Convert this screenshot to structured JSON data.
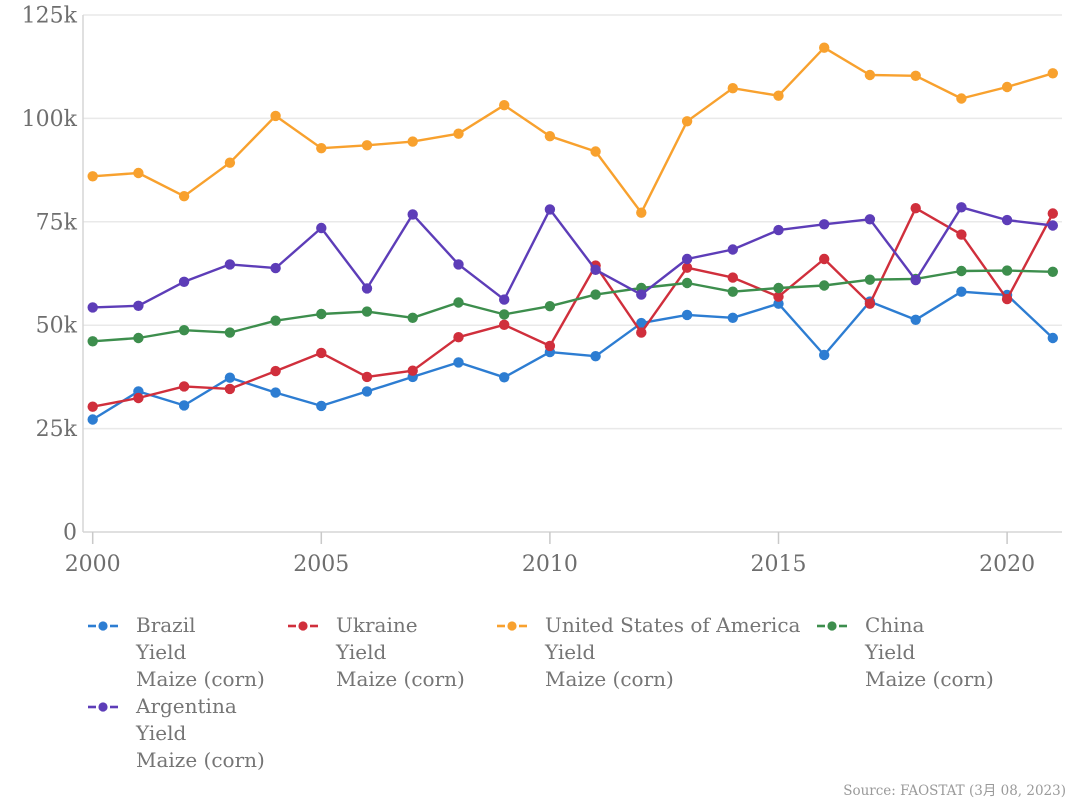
{
  "chart_data": {
    "type": "line",
    "title": "",
    "x": [
      2000,
      2001,
      2002,
      2003,
      2004,
      2005,
      2006,
      2007,
      2008,
      2009,
      2010,
      2011,
      2012,
      2013,
      2014,
      2015,
      2016,
      2017,
      2018,
      2019,
      2020,
      2021
    ],
    "x_tick_labels": [
      "2000",
      "2005",
      "2010",
      "2015",
      "2020"
    ],
    "x_tick_values": [
      2000,
      2005,
      2010,
      2015,
      2020
    ],
    "y_tick_labels": [
      "0",
      "25k",
      "50k",
      "75k",
      "100k",
      "125k"
    ],
    "y_tick_values": [
      0,
      25,
      50,
      75,
      100,
      125
    ],
    "ylim": [
      0,
      125
    ],
    "grid": true,
    "legend_position": "bottom",
    "series": [
      {
        "name": "Brazil",
        "color": "#2d7dd2",
        "values": [
          27.2,
          34.0,
          30.6,
          37.3,
          33.7,
          30.5,
          34.0,
          37.5,
          41.0,
          37.4,
          43.5,
          42.5,
          50.5,
          52.5,
          51.8,
          55.2,
          42.8,
          55.7,
          51.3,
          58.1,
          57.3,
          46.9
        ]
      },
      {
        "name": "Ukraine",
        "color": "#d02f3c",
        "values": [
          30.3,
          32.4,
          35.2,
          34.6,
          38.9,
          43.3,
          37.5,
          39.0,
          47.1,
          50.1,
          45.0,
          64.4,
          48.2,
          63.9,
          61.5,
          56.9,
          66.0,
          55.2,
          78.3,
          71.9,
          56.3,
          77.0
        ]
      },
      {
        "name": "United States of America",
        "color": "#f8a12e",
        "values": [
          86.0,
          86.8,
          81.2,
          89.3,
          100.6,
          92.8,
          93.5,
          94.4,
          96.3,
          103.2,
          95.7,
          92.0,
          77.2,
          99.3,
          107.3,
          105.5,
          117.1,
          110.5,
          110.3,
          104.8,
          107.6,
          110.9
        ]
      },
      {
        "name": "China",
        "color": "#3d8e4d",
        "values": [
          46.1,
          46.9,
          48.8,
          48.2,
          51.1,
          52.7,
          53.3,
          51.8,
          55.5,
          52.6,
          54.6,
          57.4,
          59.0,
          60.2,
          58.1,
          59.0,
          59.6,
          61.0,
          61.2,
          63.1,
          63.2,
          62.9
        ]
      },
      {
        "name": "Argentina",
        "color": "#5d3db8",
        "values": [
          54.3,
          54.7,
          60.5,
          64.7,
          63.8,
          73.5,
          58.9,
          76.8,
          64.7,
          56.2,
          78.0,
          63.4,
          57.4,
          66.0,
          68.3,
          73.0,
          74.4,
          75.6,
          60.9,
          78.5,
          75.4,
          74.1
        ]
      }
    ]
  },
  "legend": {
    "items": [
      {
        "country": "Brazil",
        "metric": "Yield",
        "product": "Maize (corn)"
      },
      {
        "country": "Ukraine",
        "metric": "Yield",
        "product": "Maize (corn)"
      },
      {
        "country": "United States of America",
        "metric": "Yield",
        "product": "Maize (corn)"
      },
      {
        "country": "China",
        "metric": "Yield",
        "product": "Maize (corn)"
      },
      {
        "country": "Argentina",
        "metric": "Yield",
        "product": "Maize (corn)"
      }
    ]
  },
  "source": {
    "text": "Source: FAOSTAT (3月 08, 2023)"
  },
  "colors": {
    "axis_text": "#6e6e6e",
    "legend_text": "#757575",
    "gridline": "#e9e9e9",
    "axis_line": "#d6d6d6",
    "tick_mark": "#c9c9c9",
    "source_text": "#9a9a9a"
  }
}
